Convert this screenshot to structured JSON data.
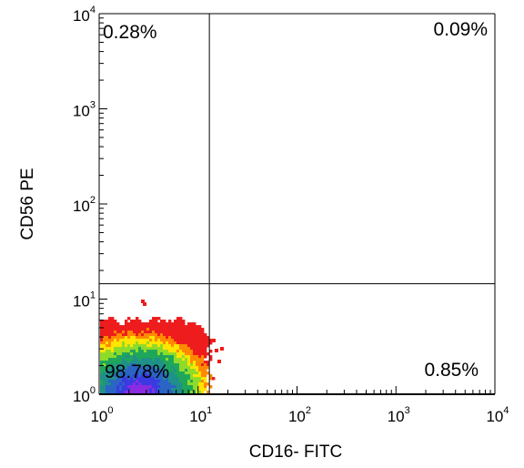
{
  "chart_data": {
    "type": "scatter",
    "subtype": "flow-cytometry-density-plot",
    "title": "",
    "xlabel": "CD16- FITC",
    "ylabel": "CD56 PE",
    "x_scale": "log",
    "y_scale": "log",
    "xlim": [
      1,
      10000
    ],
    "ylim": [
      1,
      10000
    ],
    "x_ticks": [
      {
        "base": "10",
        "exp": "0",
        "value": 1
      },
      {
        "base": "10",
        "exp": "1",
        "value": 10
      },
      {
        "base": "10",
        "exp": "2",
        "value": 100
      },
      {
        "base": "10",
        "exp": "3",
        "value": 1000
      },
      {
        "base": "10",
        "exp": "4",
        "value": 10000
      }
    ],
    "y_ticks": [
      {
        "base": "10",
        "exp": "0",
        "value": 1
      },
      {
        "base": "10",
        "exp": "1",
        "value": 10
      },
      {
        "base": "10",
        "exp": "2",
        "value": 100
      },
      {
        "base": "10",
        "exp": "3",
        "value": 1000
      },
      {
        "base": "10",
        "exp": "4",
        "value": 10000
      }
    ],
    "gates": {
      "x": 13,
      "y": 14.5
    },
    "quadrants": [
      {
        "position": "upper-left",
        "label": "0.28%",
        "value": 0.28
      },
      {
        "position": "upper-right",
        "label": "0.09%",
        "value": 0.09
      },
      {
        "position": "lower-left",
        "label": "98.78%",
        "value": 98.78
      },
      {
        "position": "lower-right",
        "label": "0.85%",
        "value": 0.85
      }
    ],
    "density_colors": [
      "#ee1c1c",
      "#ff8a00",
      "#ffe500",
      "#8fdb2a",
      "#1ea65a",
      "#1f8f8a",
      "#2a64c4",
      "#3a3ae0",
      "#8a2be2"
    ],
    "grid": false,
    "legend": "none"
  }
}
